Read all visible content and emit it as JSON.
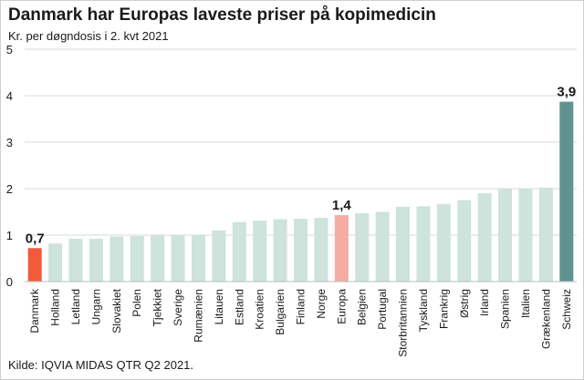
{
  "title": "Danmark har Europas laveste priser på kopimedicin",
  "subtitle": "Kr. per døgndosis i 2. kvt 2021",
  "source": "Kilde: IQVIA MIDAS QTR Q2 2021.",
  "colors": {
    "default_bar": "#cde3dc",
    "denmark": "#f15a3a",
    "europe": "#f5aca2",
    "switzerland": "#5f9290",
    "grid": "#d9d9d9"
  },
  "chart_data": {
    "type": "bar",
    "categories": [
      "Danmark",
      "Holland",
      "Letland",
      "Ungarn",
      "Slovakiet",
      "Polen",
      "Tjekkiet",
      "Sverige",
      "Rumænien",
      "Litauen",
      "Estland",
      "Kroatien",
      "Bulgarien",
      "Finland",
      "Norge",
      "Europa",
      "Belgien",
      "Portugal",
      "Storbritannien",
      "Tyskland",
      "Frankrig",
      "Østrig",
      "Irland",
      "Spanien",
      "Italien",
      "Grækenland",
      "Schweiz"
    ],
    "values": [
      0.72,
      0.82,
      0.92,
      0.92,
      0.97,
      0.98,
      1.0,
      1.0,
      1.0,
      1.1,
      1.28,
      1.31,
      1.34,
      1.35,
      1.37,
      1.43,
      1.47,
      1.5,
      1.61,
      1.62,
      1.67,
      1.75,
      1.9,
      2.0,
      2.0,
      2.02,
      3.87
    ],
    "highlights": {
      "Danmark": "denmark",
      "Europa": "europe",
      "Schweiz": "switzerland"
    },
    "data_labels": [
      {
        "category": "Danmark",
        "text": "0,7"
      },
      {
        "category": "Europa",
        "text": "1,4"
      },
      {
        "category": "Schweiz",
        "text": "3,9"
      }
    ],
    "ylim": [
      0,
      5
    ],
    "yticks": [
      "0",
      "1",
      "2",
      "3",
      "4",
      "5"
    ],
    "grid": true,
    "xlabel": "",
    "ylabel": ""
  }
}
